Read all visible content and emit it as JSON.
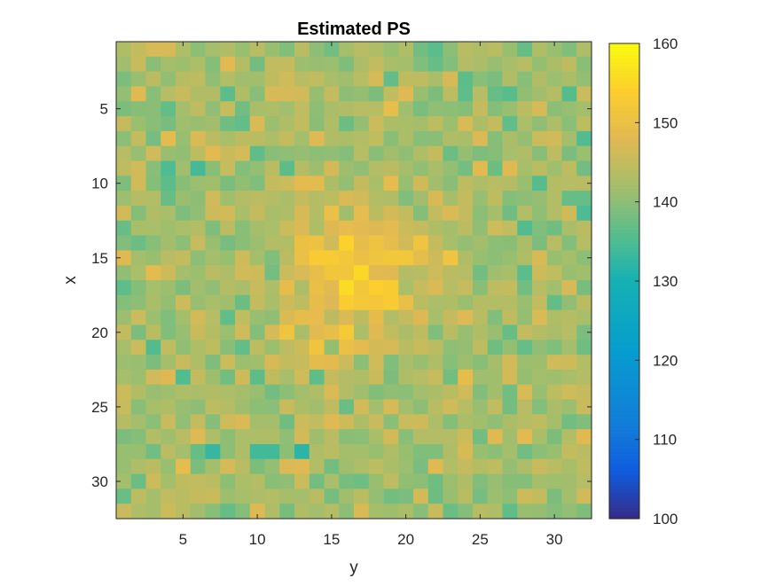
{
  "chart_data": {
    "type": "heatmap",
    "title": "Estimated PS",
    "xlabel": "y",
    "ylabel": "x",
    "x_range": [
      1,
      32
    ],
    "y_range": [
      1,
      32
    ],
    "x_ticks": [
      5,
      10,
      15,
      20,
      25,
      30
    ],
    "y_ticks": [
      5,
      10,
      15,
      20,
      25,
      30
    ],
    "y_direction": "reverse",
    "colormap": "parula",
    "clim": [
      100,
      160
    ],
    "colorbar_ticks": [
      100,
      110,
      120,
      130,
      140,
      150,
      160
    ],
    "colorbar_position": "right",
    "grid": false,
    "background_level": 142,
    "hotspot": {
      "center_x": 16.5,
      "center_y": 16,
      "peak_value": 152,
      "description_note": "Values near center of grid (x 11-21, y 11-22) reach about 150-155; surrounding background fluctuates between about 134 and 150."
    },
    "values_sample_rows": {
      "x_1": [
        143,
        145,
        147,
        147,
        143,
        140,
        142,
        143,
        141,
        144,
        141,
        139,
        144,
        140,
        138,
        142,
        144,
        143,
        141,
        143,
        138,
        136,
        140,
        144,
        143,
        144,
        141,
        137,
        143,
        141,
        139,
        143
      ],
      "x_15": [
        148,
        142,
        141,
        144,
        145,
        140,
        142,
        141,
        146,
        142,
        139,
        144,
        150,
        153,
        153,
        152,
        150,
        151,
        152,
        152,
        149,
        146,
        151,
        143,
        141,
        140,
        141,
        143,
        147,
        141,
        142,
        140
      ],
      "x_28": [
        141,
        141,
        138,
        144,
        142,
        137,
        133,
        140,
        143,
        134,
        134,
        140,
        132,
        143,
        144,
        142,
        142,
        141,
        143,
        141,
        139,
        139,
        143,
        147,
        141,
        140,
        142,
        138,
        140,
        141,
        145,
        144
      ]
    }
  }
}
